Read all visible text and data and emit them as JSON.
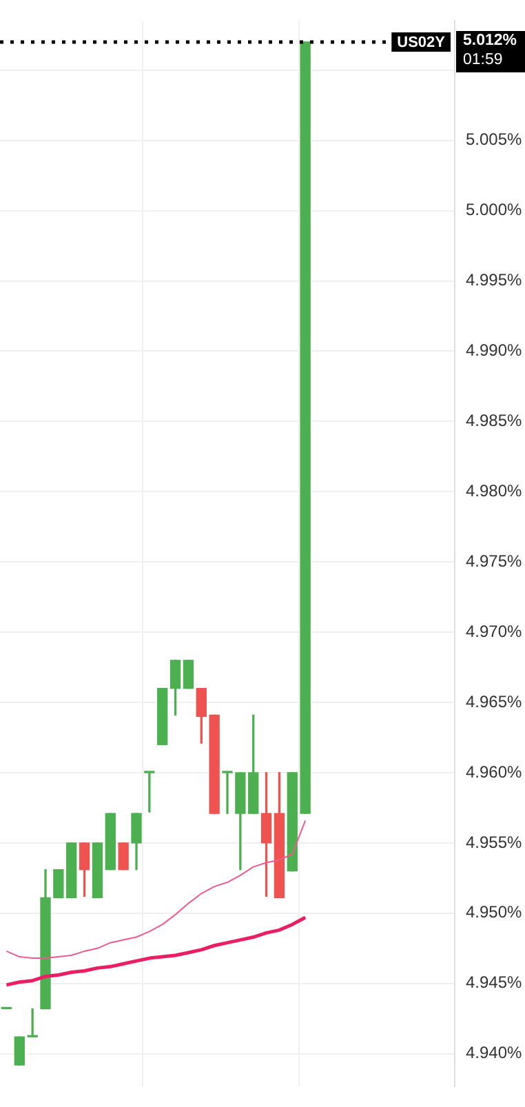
{
  "chart_data": {
    "type": "candlestick",
    "categories": [
      null,
      null,
      null,
      null,
      null,
      null,
      null,
      null,
      null,
      null,
      null,
      null,
      null,
      null,
      null,
      null,
      null,
      null,
      null,
      null,
      null,
      null,
      null,
      null,
      null,
      null,
      null,
      null,
      null,
      null,
      null,
      null,
      null,
      null,
      null
    ],
    "ohlc": [
      [
        4.9432,
        4.9432,
        4.9432,
        4.9432
      ],
      [
        4.9392,
        4.9412,
        4.9392,
        4.9412
      ],
      [
        4.9412,
        4.9432,
        4.9412,
        4.9412
      ],
      [
        4.9432,
        4.9531,
        4.9432,
        4.9511
      ],
      [
        4.9511,
        4.9531,
        4.9511,
        4.9531
      ],
      [
        4.9511,
        4.955,
        4.9511,
        4.955
      ],
      [
        4.955,
        4.955,
        4.9512,
        4.9531
      ],
      [
        4.9511,
        4.955,
        4.9511,
        4.955
      ],
      [
        4.9531,
        4.9571,
        4.9531,
        4.9571
      ],
      [
        4.955,
        4.955,
        4.9531,
        4.9531
      ],
      [
        4.955,
        4.9571,
        4.9531,
        4.9571
      ],
      [
        4.96,
        4.96,
        4.9572,
        4.96
      ],
      [
        4.962,
        4.966,
        4.962,
        4.966
      ],
      [
        4.966,
        4.968,
        4.9641,
        4.968
      ],
      [
        4.966,
        4.968,
        4.966,
        4.968
      ],
      [
        4.966,
        4.966,
        4.9621,
        4.964
      ],
      [
        4.9641,
        4.9641,
        4.9571,
        4.9571
      ],
      [
        4.96,
        4.96,
        4.9571,
        4.96
      ],
      [
        4.9571,
        4.96,
        4.9531,
        4.96
      ],
      [
        4.9571,
        4.9641,
        4.9571,
        4.96
      ],
      [
        4.9571,
        4.96,
        4.9512,
        4.955
      ],
      [
        4.9571,
        4.96,
        4.9511,
        4.9511
      ],
      [
        4.953,
        4.96,
        4.953,
        4.96
      ],
      [
        4.9571,
        5.012,
        4.9571,
        5.012
      ],
      null,
      null,
      null,
      null,
      null,
      null,
      null,
      null,
      null,
      null,
      null
    ],
    "colors": [
      "#4caf50",
      "#4caf50",
      "#4caf50",
      "#4caf50",
      "#4caf50",
      "#4caf50",
      "#ef5350",
      "#4caf50",
      "#4caf50",
      "#ef5350",
      "#4caf50",
      "#4caf50",
      "#4caf50",
      "#4caf50",
      "#4caf50",
      "#ef5350",
      "#ef5350",
      "#4caf50",
      "#4caf50",
      "#4caf50",
      "#ef5350",
      "#ef5350",
      "#4caf50",
      "#4caf50",
      null,
      null,
      null,
      null,
      null,
      null,
      null,
      null,
      null,
      null,
      null
    ],
    "series": [
      {
        "type": "line",
        "color": "#ef5b8f",
        "values": [
          4.9473,
          4.9469,
          4.9468,
          4.9468,
          4.9469,
          4.947,
          4.9473,
          4.9475,
          4.9479,
          4.9481,
          4.9483,
          4.9487,
          4.9492,
          4.9499,
          4.9507,
          4.9514,
          4.9519,
          4.9522,
          4.9527,
          4.9533,
          4.9536,
          4.9538,
          4.9542,
          4.9566,
          null,
          null,
          null,
          null,
          null,
          null,
          null,
          null,
          null,
          null,
          null
        ]
      },
      {
        "type": "line",
        "color": "#e91e63",
        "values": [
          4.9449,
          4.9451,
          4.9452,
          4.9455,
          4.9456,
          4.9458,
          4.9459,
          4.9461,
          4.9462,
          4.9464,
          4.9466,
          4.9468,
          4.9469,
          4.947,
          4.9472,
          4.9474,
          4.9477,
          4.9479,
          4.9481,
          4.9483,
          4.9486,
          4.9488,
          4.9492,
          4.9497,
          null,
          null,
          null,
          null,
          null,
          null,
          null,
          null,
          null,
          null,
          null
        ]
      }
    ],
    "ylim": [
      4.9377,
      5.0135
    ],
    "yticks": [
      {
        "value": 4.94,
        "label": "4.940%"
      },
      {
        "value": 4.945,
        "label": "4.945%"
      },
      {
        "value": 4.95,
        "label": "4.950%"
      },
      {
        "value": 4.955,
        "label": "4.955%"
      },
      {
        "value": 4.96,
        "label": "4.960%"
      },
      {
        "value": 4.965,
        "label": "4.965%"
      },
      {
        "value": 4.97,
        "label": "4.970%"
      },
      {
        "value": 4.975,
        "label": "4.975%"
      },
      {
        "value": 4.98,
        "label": "4.980%"
      },
      {
        "value": 4.985,
        "label": "4.985%"
      },
      {
        "value": 4.99,
        "label": "4.990%"
      },
      {
        "value": 4.995,
        "label": "4.995%"
      },
      {
        "value": 5.0,
        "label": "5.000%"
      },
      {
        "value": 5.005,
        "label": "5.005%"
      },
      {
        "value": 5.01,
        "label": null
      }
    ],
    "ref_lines": [
      {
        "axis": "y",
        "value": 5.012,
        "label": "US02Y",
        "color": "#000000",
        "line_style": "dotted"
      }
    ],
    "annotations": [
      "5.012%",
      "01:59"
    ],
    "grid": true,
    "legend": false,
    "tick_labels": "y"
  }
}
